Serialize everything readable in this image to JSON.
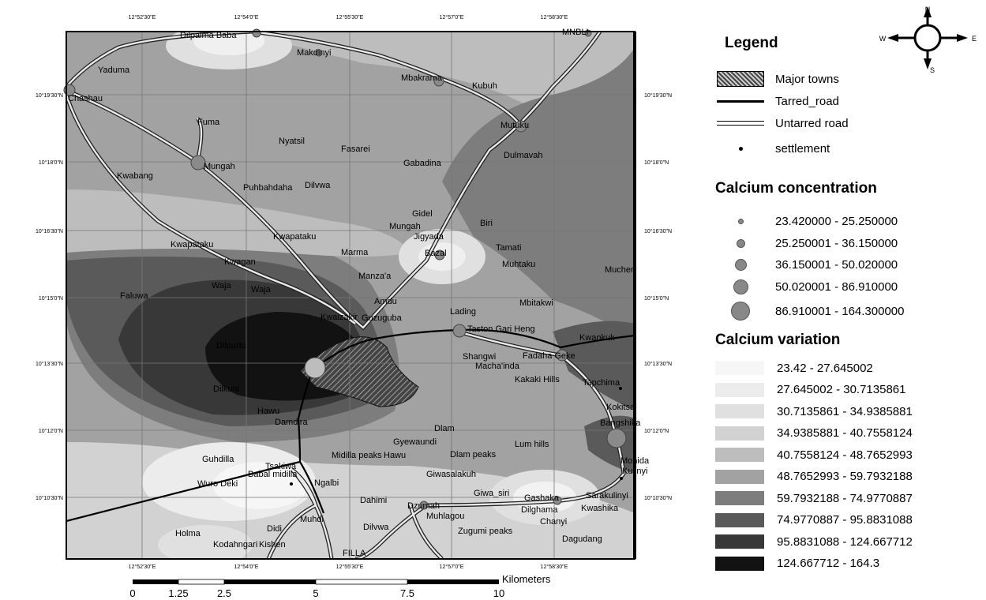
{
  "map": {
    "lon_ticks": [
      "12°52'30\"E",
      "12°54'0\"E",
      "12°55'30\"E",
      "12°57'0\"E",
      "12°58'30\"E"
    ],
    "lat_ticks": [
      "10°19'30\"N",
      "10°18'0\"N",
      "10°16'30\"N",
      "10°15'0\"N",
      "10°13'30\"N",
      "10°12'0\"N",
      "10°10'30\"N"
    ],
    "places": [
      "Dilpalma Baba",
      "MNBLI",
      "Makdinyi",
      "Yaduma",
      "Mbakrama",
      "Kubuh",
      "Chashau",
      "Mutuku",
      "Fuma",
      "Nyatsil",
      "Fasarei",
      "Dulmavah",
      "Mungah",
      "Gabadina",
      "Kwabang",
      "Puhbahdaha",
      "Dilvwa",
      "Gidel",
      "Mungah",
      "Biri",
      "Jigyada",
      "Kwapataku",
      "Kwapataku",
      "Bazal",
      "Tamati",
      "Kwagan",
      "Marma",
      "Muhtaku",
      "Mucher",
      "Waja",
      "Waja",
      "Manza'a",
      "Faluwa",
      "Amdu",
      "Lading",
      "Mbitakwi",
      "Kwaizakir",
      "Guzuguba",
      "Taston Gari Heng",
      "Kwankuk",
      "Dilpurtu",
      "Shangwi",
      "Fadaha Geke",
      "Macha'inda",
      "Kakaki Hills",
      "Tapchima",
      "Dilkuni",
      "Kokitsa",
      "Hawu",
      "Damdira",
      "Bangshika",
      "Dlam",
      "Gyewaundi",
      "Lum hills",
      "Guhdilla",
      "Midilla peaks",
      "Hawu",
      "Dlam peaks",
      "Tsakiwa",
      "Mohida",
      "Babal midilla",
      "Kulinyi",
      "Wuro Deki",
      "Ngalbi",
      "Giwasalakuh",
      "Giwa_siri",
      "Sarakulinyi",
      "Dahimi",
      "Dzumah",
      "Gashaka",
      "Dilghama",
      "Kwashika",
      "Muhlagou",
      "Chanyi",
      "Dilvwa",
      "Holma",
      "Didi",
      "Muhdi",
      "Zugumi peaks",
      "Dagudang",
      "Kodahngari",
      "Kishen",
      "FILLA"
    ],
    "scale_labels": [
      "0",
      "1.25",
      "2.5",
      "5",
      "7.5",
      "10"
    ],
    "scale_unit": "Kilometers"
  },
  "compass": {
    "n": "N",
    "s": "S",
    "e": "E",
    "w": "W"
  },
  "legend": {
    "title": "Legend",
    "items": [
      {
        "label": "Major towns",
        "symbol": "hatch-box"
      },
      {
        "label": "Tarred_road",
        "symbol": "thick-line"
      },
      {
        "label": "Untarred road",
        "symbol": "double-line"
      },
      {
        "label": "settlement",
        "symbol": "small-dot"
      }
    ],
    "concentration_title": "Calcium concentration",
    "concentration": [
      "23.420000 - 25.250000",
      "25.250001 - 36.150000",
      "36.150001 - 50.020000",
      "50.020001 - 86.910000",
      "86.910001 - 164.300000"
    ],
    "variation_title": "Calcium variation",
    "variation": [
      {
        "label": "23.42 - 27.645002",
        "color": "#f6f6f6"
      },
      {
        "label": "27.645002 - 30.7135861",
        "color": "#ececec"
      },
      {
        "label": "30.7135861 - 34.9385881",
        "color": "#e0e0e0"
      },
      {
        "label": "34.9385881 - 40.7558124",
        "color": "#d2d2d2"
      },
      {
        "label": "40.7558124 - 48.7652993",
        "color": "#bdbdbd"
      },
      {
        "label": "48.7652993 - 59.7932188",
        "color": "#a2a2a2"
      },
      {
        "label": "59.7932188 - 74.9770887",
        "color": "#7d7d7d"
      },
      {
        "label": "74.9770887 - 95.8831088",
        "color": "#5a5a5a"
      },
      {
        "label": "95.8831088 - 124.667712",
        "color": "#383838"
      },
      {
        "label": "124.667712 - 164.3",
        "color": "#121212"
      }
    ]
  }
}
